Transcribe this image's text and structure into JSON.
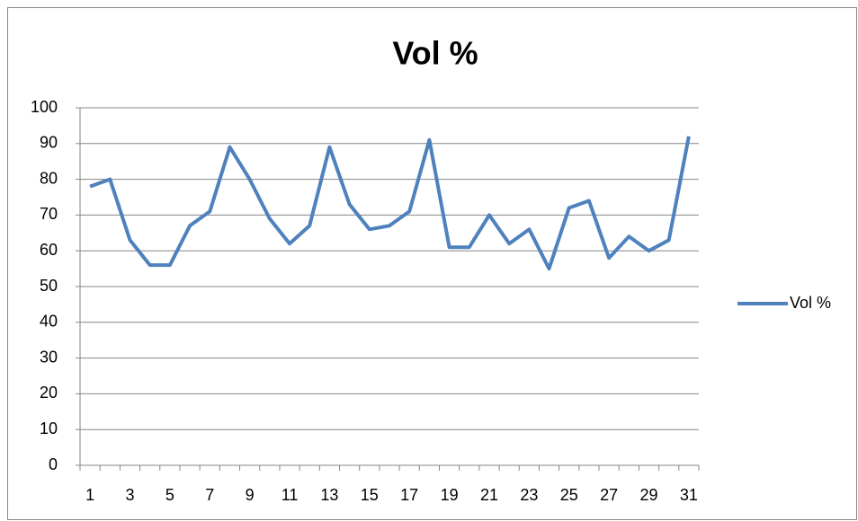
{
  "chart_data": {
    "type": "line",
    "title": "Vol %",
    "categories": [
      1,
      null,
      3,
      null,
      5,
      null,
      7,
      null,
      9,
      null,
      11,
      null,
      13,
      null,
      15,
      null,
      17,
      null,
      19,
      null,
      21,
      null,
      23,
      null,
      25,
      null,
      27,
      null,
      29,
      null,
      31
    ],
    "series": [
      {
        "name": "Vol %",
        "color": "#4f81bd",
        "values": [
          78,
          80,
          63,
          56,
          56,
          67,
          71,
          89,
          80,
          69,
          62,
          67,
          89,
          73,
          66,
          67,
          71,
          91,
          61,
          61,
          70,
          62,
          66,
          55,
          72,
          74,
          58,
          64,
          60,
          63,
          92
        ]
      }
    ],
    "ylim": [
      0,
      100
    ],
    "yticks": [
      0,
      10,
      20,
      30,
      40,
      50,
      60,
      70,
      80,
      90,
      100
    ],
    "grid": true,
    "legend": "right"
  }
}
